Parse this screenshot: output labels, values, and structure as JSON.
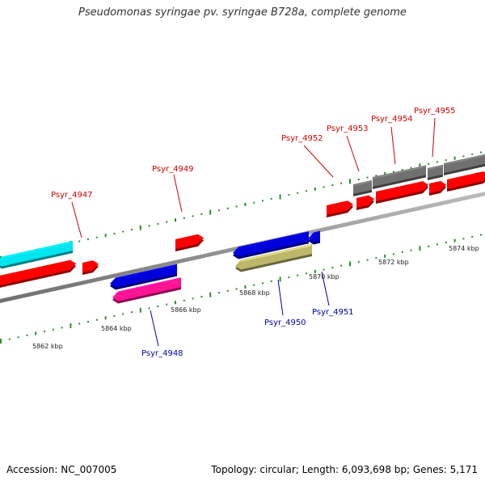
{
  "title": "Pseudomonas syringae pv. syringae B728a, complete genome",
  "footer": {
    "accession": "Accession: NC_007005",
    "summary": "Topology: circular; Length: 6,093,698 bp; Genes: 5,171"
  },
  "colors": {
    "forward_label": "#cc0000",
    "reverse_label": "#0000aa",
    "cds_forward": "#ff0000",
    "cds_reverse": "#0000dd",
    "rna_gray": "#707070",
    "cyan": "#00e5ee",
    "magenta": "#ff1493",
    "khaki": "#bdb76b",
    "ticks": "#2e8b2e",
    "backbone": "#909090"
  },
  "scale": {
    "labels": [
      "5862 kbp",
      "5864 kbp",
      "5866 kbp",
      "5868 kbp",
      "5870 kbp",
      "5872 kbp",
      "5874 kbp"
    ]
  },
  "genes": [
    {
      "name": "Psyr_4947",
      "strand": "forward"
    },
    {
      "name": "Psyr_4948",
      "strand": "reverse"
    },
    {
      "name": "Psyr_4949",
      "strand": "forward"
    },
    {
      "name": "Psyr_4950",
      "strand": "reverse"
    },
    {
      "name": "Psyr_4951",
      "strand": "reverse"
    },
    {
      "name": "Psyr_4952",
      "strand": "forward"
    },
    {
      "name": "Psyr_4953",
      "strand": "forward"
    },
    {
      "name": "Psyr_4954",
      "strand": "forward"
    },
    {
      "name": "Psyr_4955",
      "strand": "forward"
    }
  ]
}
